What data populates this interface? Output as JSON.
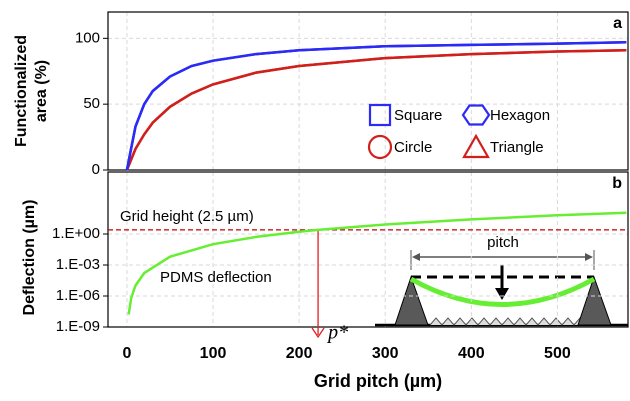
{
  "chart_data": [
    {
      "type": "line",
      "panel_label": "a",
      "ylabel": [
        "Functionalized",
        "area (%)"
      ],
      "x": [
        0,
        10,
        20,
        30,
        50,
        75,
        100,
        150,
        200,
        300,
        400,
        500,
        580
      ],
      "xlim": [
        -22,
        582
      ],
      "xticks": [
        0,
        100,
        200,
        300,
        400,
        500
      ],
      "ylim": [
        0,
        120
      ],
      "yticks": [
        0,
        50,
        100
      ],
      "grid": true,
      "series": [
        {
          "name": "Square",
          "marker": "square",
          "color": "#2b2bf5",
          "values": [
            0,
            33,
            50,
            60,
            71,
            79,
            83,
            88,
            91,
            94,
            95,
            96,
            97
          ]
        },
        {
          "name": "Hexagon",
          "marker": "hexagon",
          "color": "#2b2bf5",
          "values": [
            0,
            33,
            50,
            60,
            71,
            79,
            83,
            88,
            91,
            94,
            95,
            96,
            97
          ]
        },
        {
          "name": "Circle",
          "marker": "circle",
          "color": "#d0201c",
          "values": [
            0,
            16,
            27,
            36,
            48,
            58,
            65,
            74,
            79,
            85,
            88,
            90,
            91
          ]
        },
        {
          "name": "Triangle",
          "marker": "triangle",
          "color": "#d0201c",
          "values": [
            0,
            16,
            27,
            36,
            48,
            58,
            65,
            74,
            79,
            85,
            88,
            90,
            91
          ]
        }
      ]
    },
    {
      "type": "line",
      "panel_label": "b",
      "log_y": true,
      "ylabel": "Deflection (µm)",
      "xlabel": "Grid pitch (µm)",
      "x": [
        2,
        5,
        10,
        20,
        50,
        100,
        150,
        200,
        222,
        300,
        400,
        500,
        580
      ],
      "xlim": [
        -22,
        582
      ],
      "xticks": [
        0,
        100,
        200,
        300,
        400,
        500
      ],
      "ylim": [
        1e-09,
        1000000
      ],
      "yticks": [
        {
          "value": 1e-09,
          "label": "1.E-09"
        },
        {
          "value": 1e-06,
          "label": "1.E-06"
        },
        {
          "value": 0.001,
          "label": "1.E-03"
        },
        {
          "value": 1,
          "label": "1.E+00"
        }
      ],
      "grid": true,
      "series": [
        {
          "name": "PDMS deflection",
          "color": "#66ee33",
          "values": [
            1.65e-08,
            6.4e-07,
            1.03e-05,
            0.000165,
            0.0064,
            0.103,
            0.52,
            1.65,
            2.5,
            8.3,
            26,
            64,
            116
          ]
        }
      ],
      "hline": {
        "value": 2.5,
        "label": "Grid height (2.5 µm)",
        "color": "#c00000"
      },
      "vline": {
        "x": 222,
        "label": "p*",
        "color": "#e02020"
      }
    }
  ],
  "inset": {
    "label": "pitch"
  }
}
